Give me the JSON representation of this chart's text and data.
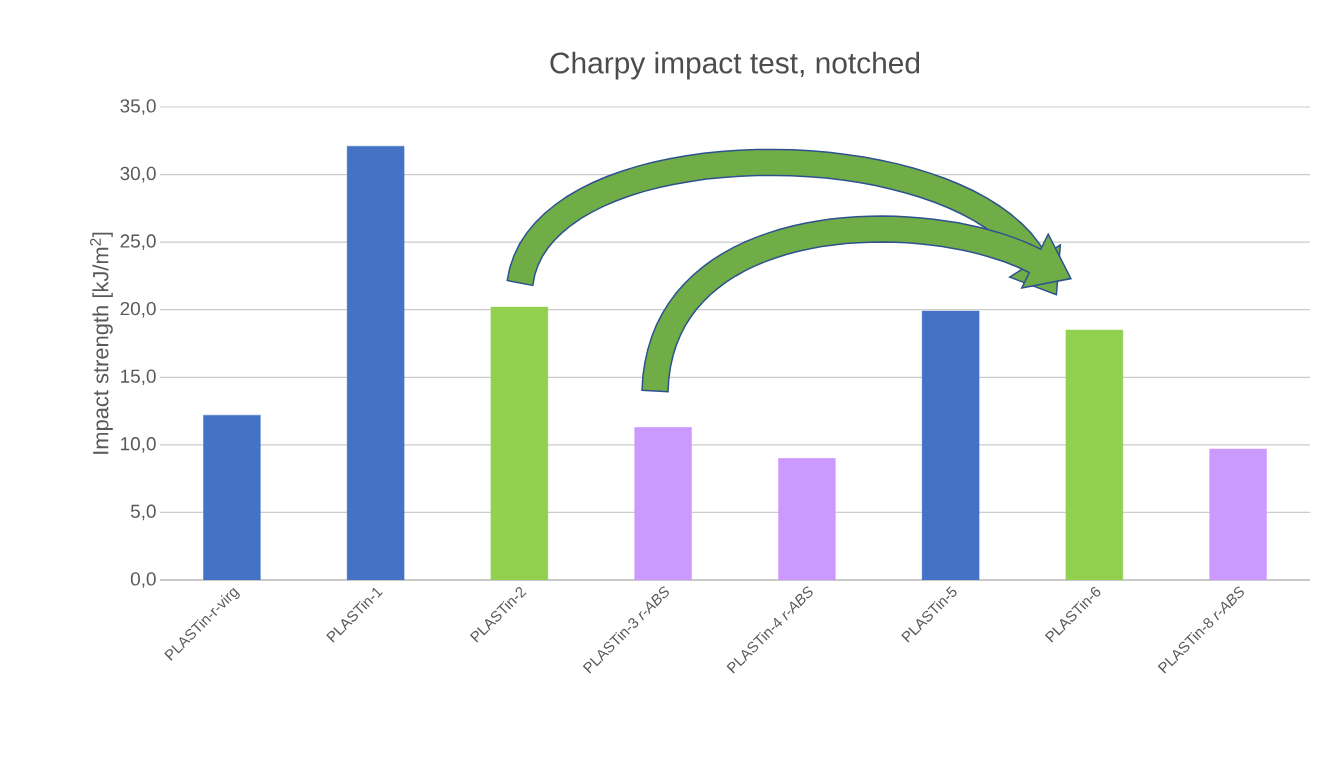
{
  "chart_data": {
    "type": "bar",
    "title": "Charpy impact test, notched",
    "ylabel": "Impact strength [kJ/m$^{2}$]",
    "categories": [
      "PLASTin-r-virg",
      "PLASTin-1",
      "PLASTin-2",
      "PLASTin-3 *r-ABS*",
      "PLASTin-4 *r-ABS*",
      "PLASTin-5",
      "PLASTin-6",
      "PLASTin-8 *r-ABS*"
    ],
    "values": [
      12.2,
      32.1,
      20.2,
      11.3,
      9.0,
      19.9,
      18.5,
      9.7
    ],
    "colors": [
      "#4472c4",
      "#4472c4",
      "#92d050",
      "#cc99ff",
      "#cc99ff",
      "#4472c4",
      "#92d050",
      "#cc99ff"
    ],
    "ylim": [
      0,
      35
    ],
    "yticks": [
      {
        "value": 0,
        "label": "0,0"
      },
      {
        "value": 5,
        "label": "5,0"
      },
      {
        "value": 10,
        "label": "10,0"
      },
      {
        "value": 15,
        "label": "15,0"
      },
      {
        "value": 20,
        "label": "20,0"
      },
      {
        "value": 25,
        "label": "25,0"
      },
      {
        "value": 30,
        "label": "30,0"
      },
      {
        "value": 35,
        "label": "35,0"
      }
    ],
    "grid": "y"
  }
}
